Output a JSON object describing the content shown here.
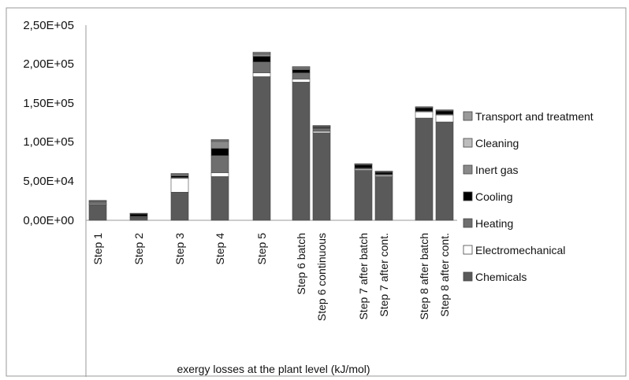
{
  "chart_data": {
    "type": "bar",
    "stacked": true,
    "title": "",
    "xlabel": "exergy losses at the plant level (kJ/mol)",
    "ylabel": "",
    "ylim": [
      0,
      250000
    ],
    "yticks": [
      0,
      50000,
      100000,
      150000,
      200000,
      250000
    ],
    "ytick_labels": [
      "0,00E+00",
      "5,00E+04",
      "1,00E+05",
      "1,50E+05",
      "2,00E+05",
      "2,50E+05"
    ],
    "grid": false,
    "legend_position": "right",
    "categories": [
      "Step 1",
      "Step 2",
      "Step 3",
      "Step 4",
      "Step 5",
      "Step 6 batch",
      "Step 6 continuous",
      "Step 7 after batch",
      "Step 7 after cont.",
      "Step 8 after batch",
      "Step 8 after cont."
    ],
    "series": [
      {
        "name": "Chemicals",
        "color": "#5a5a5a",
        "values": [
          20000,
          3000,
          36000,
          56000,
          184000,
          177000,
          112000,
          64000,
          56000,
          131000,
          126000
        ]
      },
      {
        "name": "Electromechanical",
        "color": "#ffffff",
        "values": [
          1000,
          500,
          18000,
          5000,
          5000,
          4000,
          2000,
          1500,
          1500,
          8000,
          9000
        ]
      },
      {
        "name": "Heating",
        "color": "#6e6e6e",
        "values": [
          3000,
          1500,
          1000,
          22000,
          14000,
          8000,
          4000,
          1500,
          1500,
          1000,
          1000
        ]
      },
      {
        "name": "Cooling",
        "color": "#000000",
        "values": [
          0,
          3000,
          2000,
          9000,
          7000,
          4000,
          1000,
          4000,
          2500,
          4000,
          4000
        ]
      },
      {
        "name": "Inert gas",
        "color": "#8a8a8a",
        "values": [
          1000,
          500,
          2000,
          9000,
          3000,
          2000,
          1000,
          1000,
          1000,
          1000,
          1000
        ]
      },
      {
        "name": "Cleaning",
        "color": "#bdbdbd",
        "values": [
          0,
          0,
          0,
          1000,
          500,
          500,
          500,
          0,
          0,
          0,
          0
        ]
      },
      {
        "name": "Transport and treatment",
        "color": "#999999",
        "values": [
          500,
          500,
          1000,
          1500,
          2000,
          1500,
          1000,
          500,
          500,
          500,
          500
        ]
      }
    ]
  }
}
